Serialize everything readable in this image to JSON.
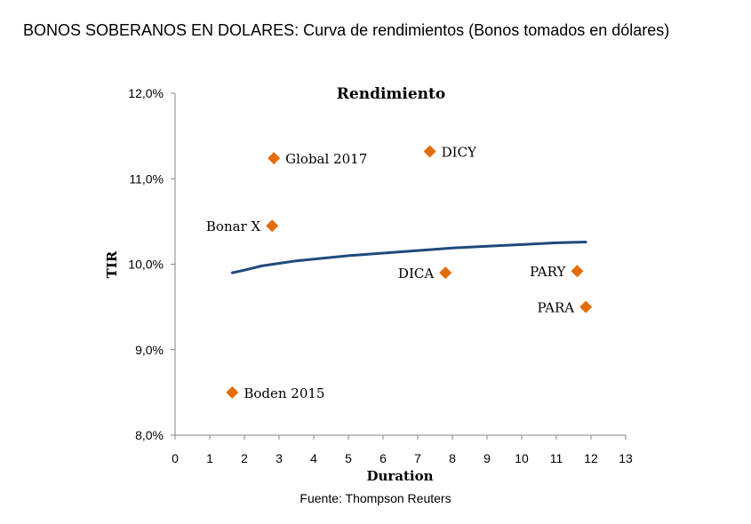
{
  "page": {
    "title": "BONOS SOBERANOS EN DOLARES: Curva de rendimientos (Bonos tomados en dólares)",
    "source": "Fuente: Thompson Reuters"
  },
  "chart_data": {
    "type": "scatter",
    "title": "Rendimiento",
    "xlabel": "Duration",
    "ylabel": "TIR",
    "xlim": [
      0,
      13
    ],
    "ylim": [
      8.0,
      12.0
    ],
    "xticks": [
      0,
      1,
      2,
      3,
      4,
      5,
      6,
      7,
      8,
      9,
      10,
      11,
      12,
      13
    ],
    "yticks": [
      8.0,
      9.0,
      10.0,
      11.0,
      12.0
    ],
    "ytick_labels": [
      "8,0%",
      "9,0%",
      "10,0%",
      "11,0%",
      "12,0%"
    ],
    "grid": false,
    "marker_color": "#e36c0a",
    "curve_color": "#1f497d",
    "points": [
      {
        "label": "Global 2017",
        "x": 2.85,
        "y": 11.24,
        "label_pos": "right"
      },
      {
        "label": "DICY",
        "x": 7.35,
        "y": 11.32,
        "label_pos": "right"
      },
      {
        "label": "Bonar X",
        "x": 2.8,
        "y": 10.45,
        "label_pos": "left"
      },
      {
        "label": "DICA",
        "x": 7.8,
        "y": 9.9,
        "label_pos": "left"
      },
      {
        "label": "PARY",
        "x": 11.6,
        "y": 9.92,
        "label_pos": "left"
      },
      {
        "label": "PARA",
        "x": 11.85,
        "y": 9.5,
        "label_pos": "left"
      },
      {
        "label": "Boden 2015",
        "x": 1.65,
        "y": 8.5,
        "label_pos": "right"
      }
    ],
    "trend_curve": {
      "type": "logarithmic",
      "x": [
        1.65,
        2,
        2.5,
        3,
        3.5,
        4,
        5,
        6,
        7,
        8,
        9,
        10,
        11,
        11.85
      ],
      "y": [
        9.9,
        9.93,
        9.98,
        10.01,
        10.04,
        10.06,
        10.1,
        10.13,
        10.16,
        10.19,
        10.21,
        10.23,
        10.25,
        10.26
      ]
    }
  }
}
